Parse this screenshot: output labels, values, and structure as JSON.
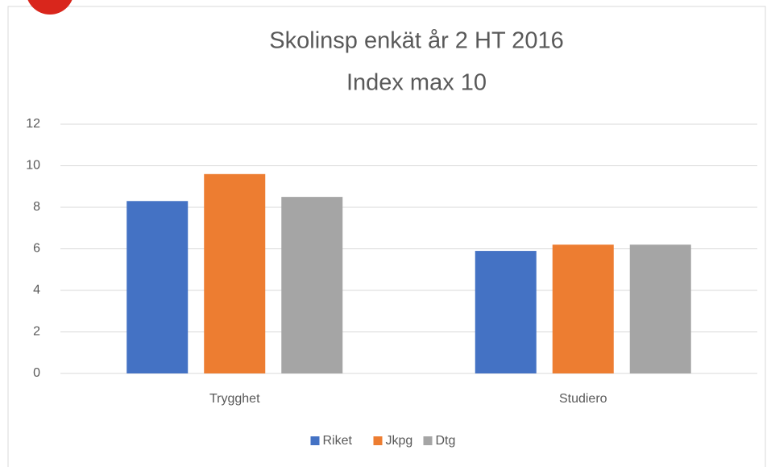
{
  "chart_data": {
    "type": "bar",
    "title": "Skolinsp enkät år 2 HT 2016",
    "subtitle": "Index max 10",
    "categories": [
      "Trygghet",
      "Studiero"
    ],
    "series": [
      {
        "name": "Riket",
        "color": "#4472c4",
        "values": [
          8.3,
          5.9
        ]
      },
      {
        "name": "Jkpg",
        "color": "#ed7d31",
        "values": [
          9.6,
          6.2
        ]
      },
      {
        "name": "Dtg",
        "color": "#a5a5a5",
        "values": [
          8.5,
          6.2
        ]
      }
    ],
    "ylim": [
      0,
      12
    ],
    "yticks": [
      0,
      2,
      4,
      6,
      8,
      10,
      12
    ],
    "grid": true,
    "legend": "bottom"
  }
}
